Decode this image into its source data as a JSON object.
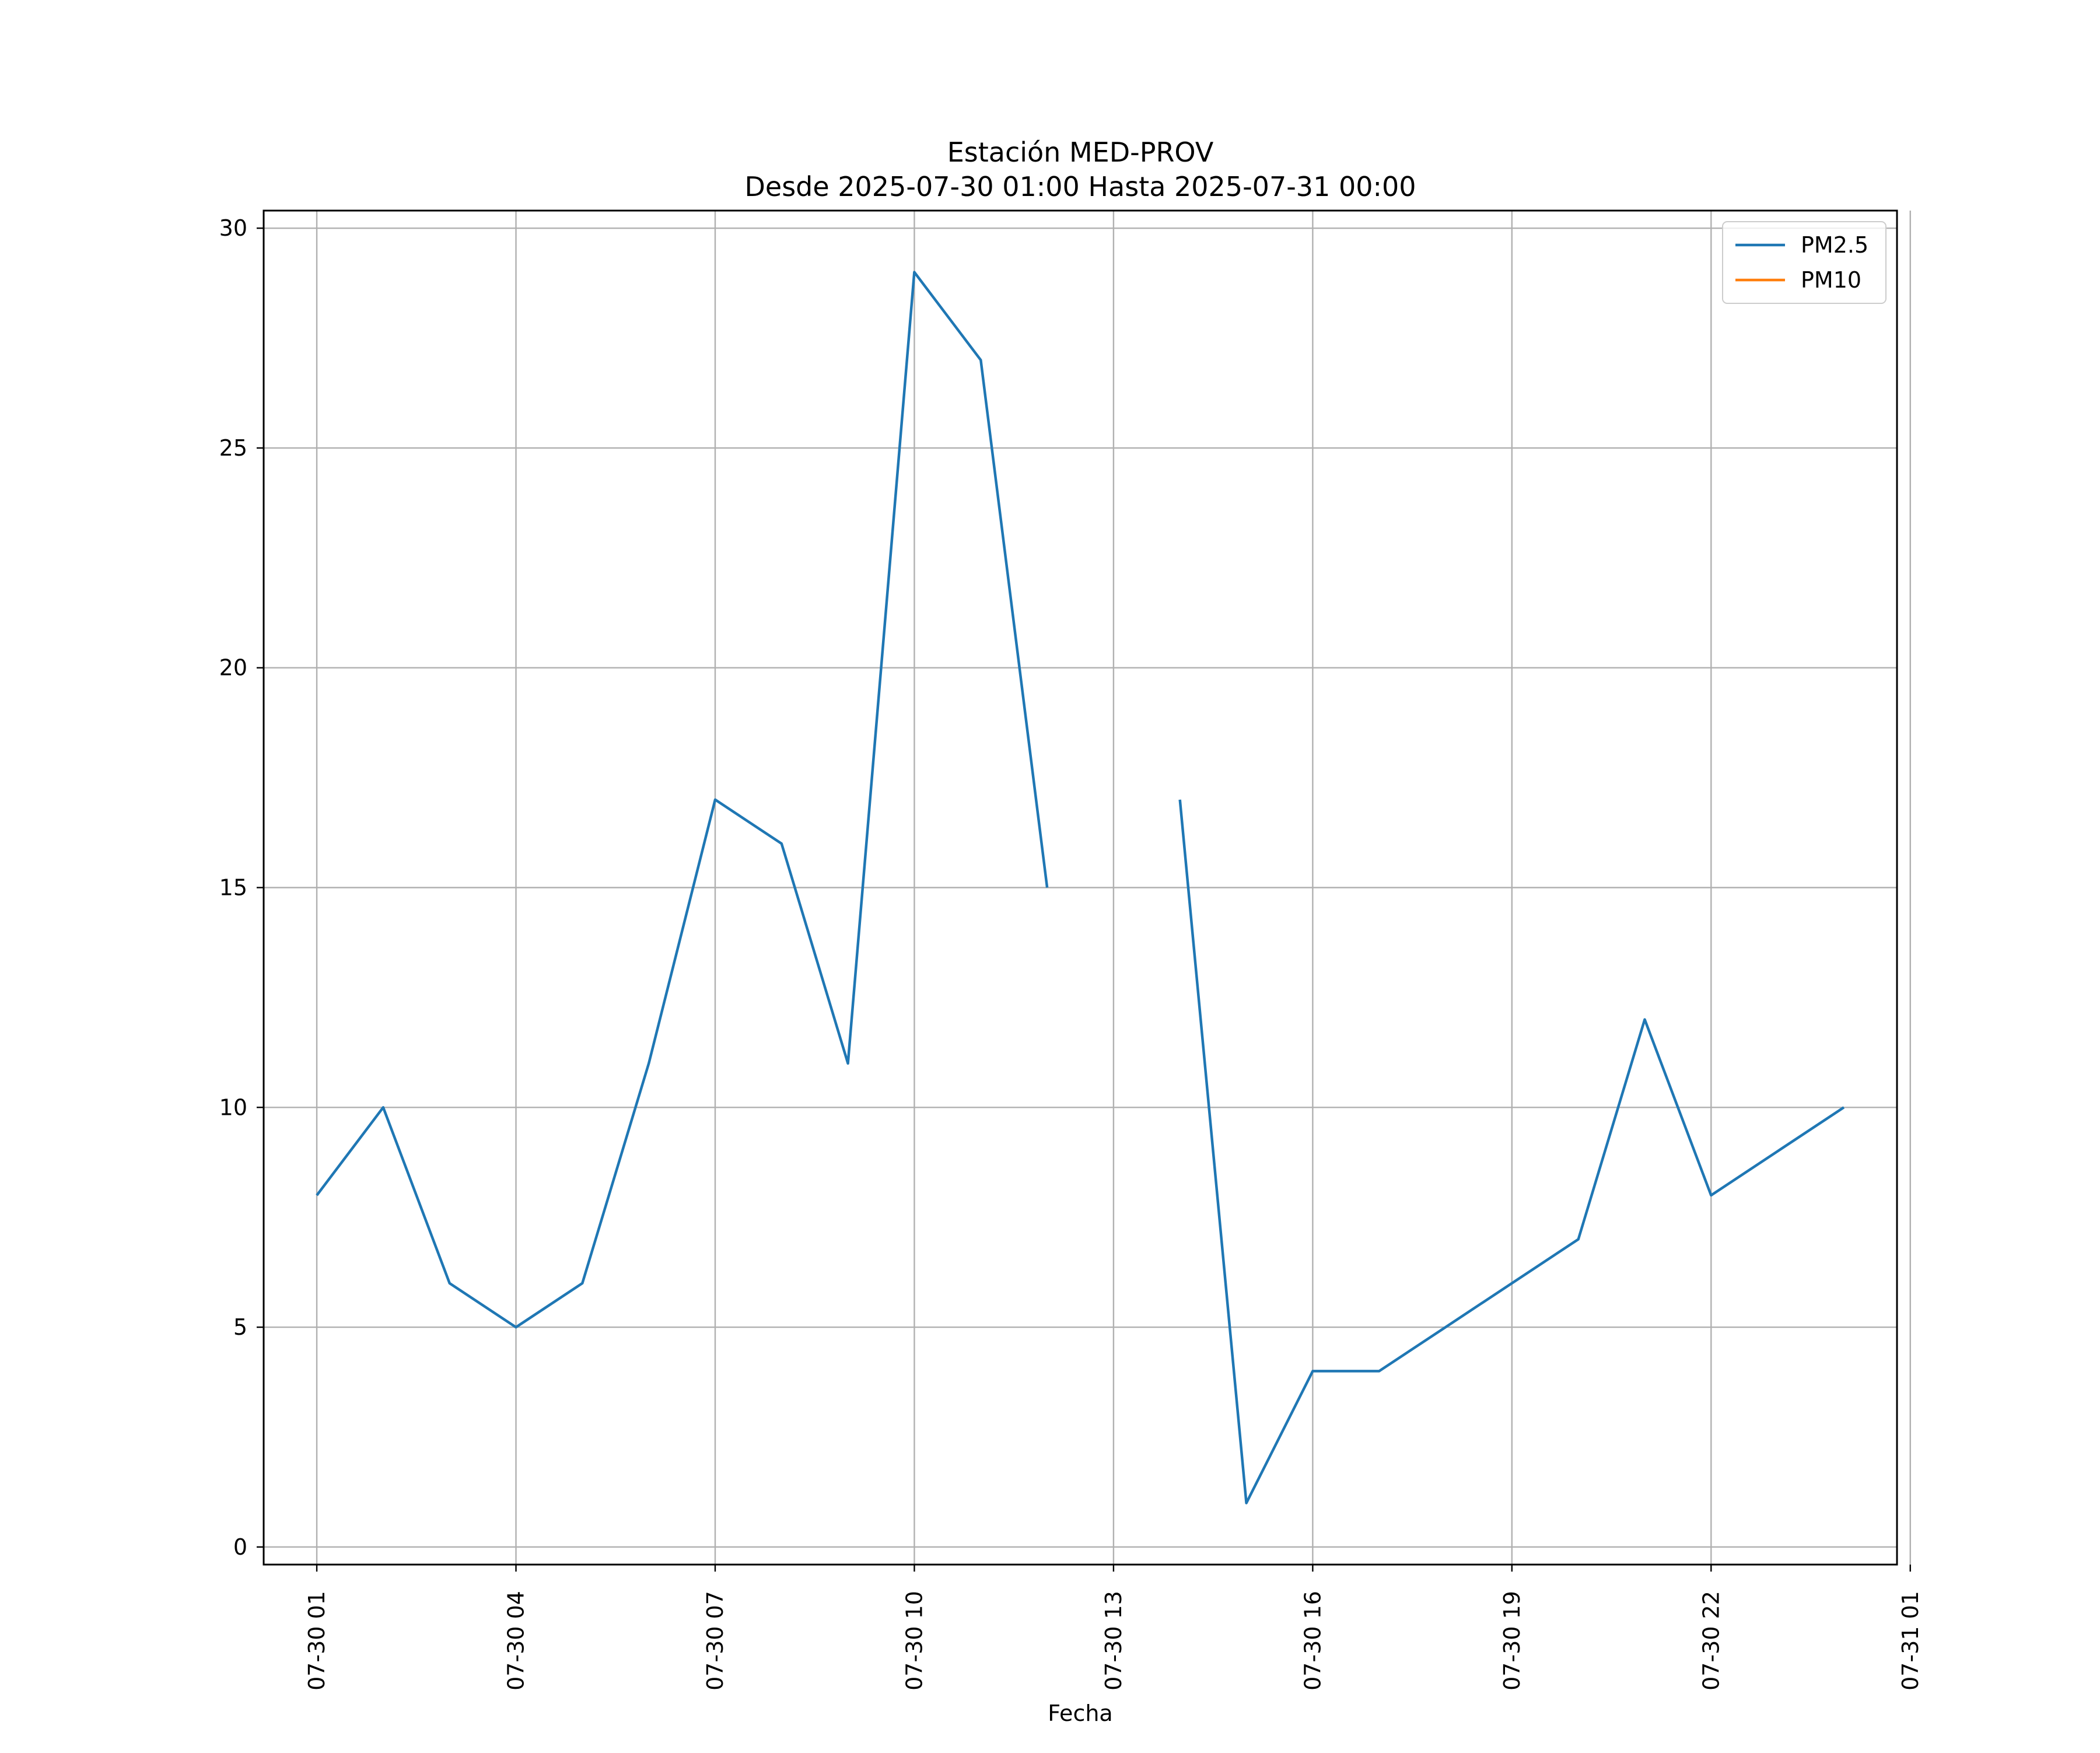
{
  "chart_data": {
    "type": "line",
    "title": "Estación MED-PROV",
    "subtitle": "Desde 2025-07-30 01:00 Hasta 2025-07-31 00:00",
    "xlabel": "Fecha",
    "ylabel": "",
    "x": [
      "2025-07-30 01:00",
      "2025-07-30 02:00",
      "2025-07-30 03:00",
      "2025-07-30 04:00",
      "2025-07-30 05:00",
      "2025-07-30 06:00",
      "2025-07-30 07:00",
      "2025-07-30 08:00",
      "2025-07-30 09:00",
      "2025-07-30 10:00",
      "2025-07-30 11:00",
      "2025-07-30 12:00",
      "2025-07-30 13:00",
      "2025-07-30 14:00",
      "2025-07-30 15:00",
      "2025-07-30 16:00",
      "2025-07-30 17:00",
      "2025-07-30 18:00",
      "2025-07-30 19:00",
      "2025-07-30 20:00",
      "2025-07-30 21:00",
      "2025-07-30 22:00",
      "2025-07-30 23:00",
      "2025-07-31 00:00"
    ],
    "series": [
      {
        "name": "PM2.5",
        "color": "#1f77b4",
        "values": [
          8,
          10,
          6,
          5,
          6,
          11,
          17,
          16,
          11,
          29,
          27,
          15,
          null,
          17,
          1,
          4,
          4,
          5,
          6,
          7,
          12,
          8,
          9,
          10
        ]
      },
      {
        "name": "PM10",
        "color": "#ff7f0e",
        "values": [
          null,
          null,
          null,
          null,
          null,
          null,
          null,
          null,
          null,
          null,
          null,
          null,
          null,
          null,
          null,
          null,
          null,
          null,
          null,
          null,
          null,
          null,
          null,
          null
        ]
      }
    ],
    "xlim": [
      "2025-07-30 00:12",
      "2025-07-31 00:48"
    ],
    "ylim": [
      -0.4,
      30.4
    ],
    "xticks": [
      "07-30 01",
      "07-30 04",
      "07-30 07",
      "07-30 10",
      "07-30 13",
      "07-30 16",
      "07-30 19",
      "07-30 22",
      "07-31 01"
    ],
    "yticks": [
      "0",
      "5",
      "10",
      "15",
      "20",
      "25",
      "30"
    ],
    "grid": true,
    "legend_position": "top-right"
  }
}
